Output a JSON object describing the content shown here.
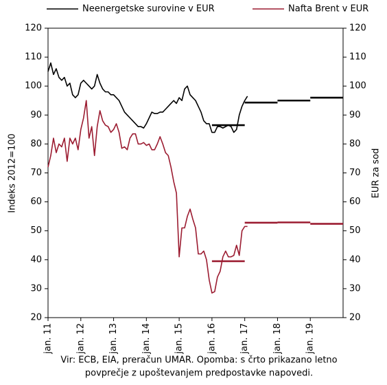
{
  "chart_data": {
    "type": "line",
    "y_label": "Indeks 2012=100",
    "y2_label": "EUR za sod",
    "note": [
      "Vir: ECB, EIA, preračun UMAR. Opomba: s črto prikazano letno",
      "povprečje z upoštevanjem predpostavke napovedi."
    ],
    "x": [
      "2011-01",
      "2011-02",
      "2011-03",
      "2011-04",
      "2011-05",
      "2011-06",
      "2011-07",
      "2011-08",
      "2011-09",
      "2011-10",
      "2011-11",
      "2011-12",
      "2012-01",
      "2012-02",
      "2012-03",
      "2012-04",
      "2012-05",
      "2012-06",
      "2012-07",
      "2012-08",
      "2012-09",
      "2012-10",
      "2012-11",
      "2012-12",
      "2013-01",
      "2013-02",
      "2013-03",
      "2013-04",
      "2013-05",
      "2013-06",
      "2013-07",
      "2013-08",
      "2013-09",
      "2013-10",
      "2013-11",
      "2013-12",
      "2014-01",
      "2014-02",
      "2014-03",
      "2014-04",
      "2014-05",
      "2014-06",
      "2014-07",
      "2014-08",
      "2014-09",
      "2014-10",
      "2014-11",
      "2014-12",
      "2015-01",
      "2015-02",
      "2015-03",
      "2015-04",
      "2015-05",
      "2015-06",
      "2015-07",
      "2015-08",
      "2015-09",
      "2015-10",
      "2015-11",
      "2015-12",
      "2016-01",
      "2016-02",
      "2016-03",
      "2016-04",
      "2016-05",
      "2016-06",
      "2016-07",
      "2016-08",
      "2016-09",
      "2016-10",
      "2016-11",
      "2016-12",
      "2017-01",
      "2017-02"
    ],
    "xlim": [
      "2011-01",
      "2020-01"
    ],
    "xticks": [
      {
        "value": "2011-01",
        "label": "jan. 11"
      },
      {
        "value": "2012-01",
        "label": "jan. 12"
      },
      {
        "value": "2013-01",
        "label": "jan. 13"
      },
      {
        "value": "2014-01",
        "label": "jan. 14"
      },
      {
        "value": "2015-01",
        "label": "jan. 15"
      },
      {
        "value": "2016-01",
        "label": "jan. 16"
      },
      {
        "value": "2017-01",
        "label": "jan. 17"
      },
      {
        "value": "2018-01",
        "label": "jan. 18"
      },
      {
        "value": "2019-01",
        "label": "jan. 19"
      }
    ],
    "ylim": [
      20,
      120
    ],
    "yticks": [
      20,
      30,
      40,
      50,
      60,
      70,
      80,
      90,
      100,
      110,
      120
    ],
    "y2lim": [
      20,
      120
    ],
    "y2ticks": [
      20,
      30,
      40,
      50,
      60,
      70,
      80,
      90,
      100,
      110,
      120
    ],
    "series": [
      {
        "name": "Neenergetske surovine v EUR",
        "color": "#000000",
        "values": [
          105,
          108,
          104,
          106,
          103,
          102,
          103,
          100,
          101,
          97,
          96,
          97,
          101,
          102,
          101,
          100,
          99,
          100,
          104,
          101,
          99,
          98,
          98,
          97,
          97,
          96,
          95,
          93,
          91,
          90,
          89,
          88,
          87,
          86,
          86,
          85.5,
          87,
          89,
          91,
          90.5,
          90.5,
          91,
          91,
          92,
          93,
          94,
          95,
          94,
          96,
          95,
          99,
          100,
          97,
          96,
          95,
          93,
          91,
          88,
          87,
          87,
          84,
          84,
          86,
          86,
          85.5,
          86,
          86.5,
          86,
          84,
          85,
          90,
          93,
          95,
          96.5
        ],
        "avg_x": [
          "2016",
          "2017",
          "2018",
          "2019"
        ],
        "avg_values": [
          86.5,
          94.3,
          95,
          96
        ]
      },
      {
        "name": "Nafta Brent v EUR",
        "color": "#9b1b30",
        "axis": "y2",
        "values": [
          72,
          76,
          82,
          77,
          80,
          79,
          82,
          74,
          82,
          80,
          82,
          78,
          85,
          89,
          95,
          82,
          86,
          76,
          86,
          91.5,
          88,
          86.5,
          86,
          84,
          85,
          87,
          84,
          78.5,
          79,
          78,
          82,
          83.5,
          83.5,
          80,
          80,
          80.5,
          79.5,
          80,
          78,
          78,
          80,
          82.5,
          80,
          77,
          76,
          72,
          67,
          63,
          41,
          51,
          51,
          55,
          57.5,
          54,
          51,
          42,
          42,
          43,
          40,
          33,
          28.5,
          29,
          34,
          36,
          41,
          43,
          41,
          41,
          41.5,
          45,
          41.5,
          50,
          51.5,
          51.5
        ],
        "avg_x": [
          "2016",
          "2017",
          "2018",
          "2019"
        ],
        "avg_values": [
          39.5,
          52.8,
          52.9,
          52.4
        ]
      }
    ]
  }
}
